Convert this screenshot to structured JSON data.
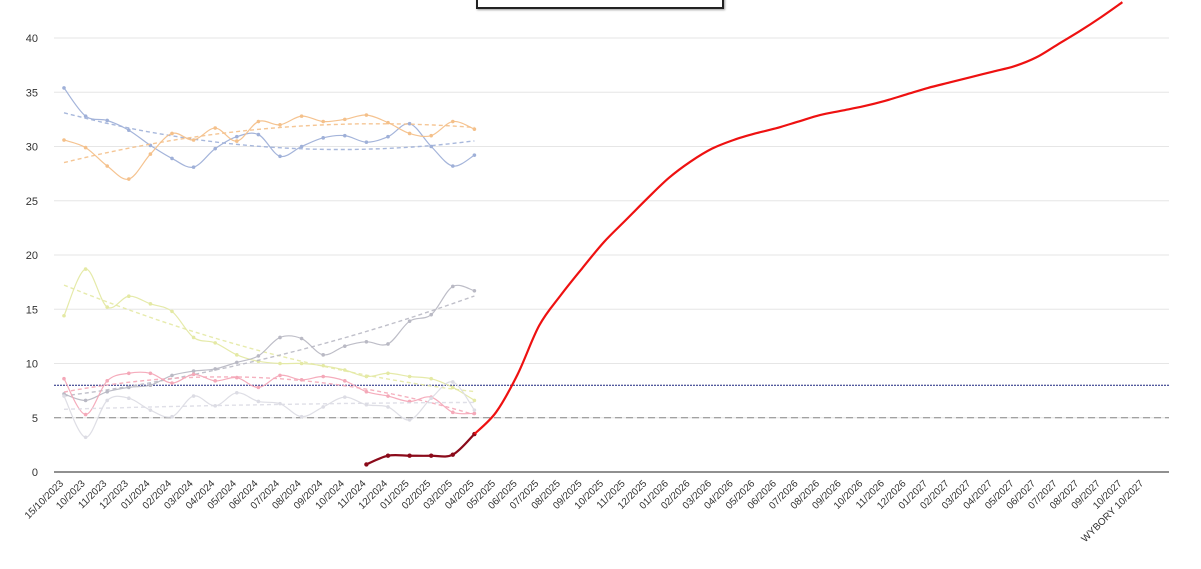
{
  "chart_data": {
    "type": "line",
    "y_ticks": [
      0,
      5,
      10,
      15,
      20,
      25,
      30,
      35,
      40
    ],
    "ylim": [
      0,
      43
    ],
    "x_labels": [
      "15/10/2023",
      "10/2023",
      "11/2023",
      "12/2023",
      "01/2024",
      "02/2024",
      "03/2024",
      "04/2024",
      "05/2024",
      "06/2024",
      "07/2024",
      "08/2024",
      "09/2024",
      "10/2024",
      "11/2024",
      "12/2024",
      "01/2025",
      "02/2025",
      "03/2025",
      "04/2025",
      "05/2025",
      "06/2025",
      "07/2025",
      "08/2025",
      "09/2025",
      "10/2025",
      "11/2025",
      "12/2025",
      "01/2026",
      "02/2026",
      "03/2026",
      "04/2026",
      "05/2026",
      "06/2026",
      "07/2026",
      "08/2026",
      "09/2026",
      "10/2026",
      "11/2026",
      "12/2026",
      "01/2027",
      "02/2027",
      "03/2027",
      "04/2027",
      "05/2027",
      "06/2027",
      "07/2027",
      "08/2027",
      "09/2027",
      "10/2027",
      "WYBORY 10/2027"
    ],
    "reference_lines": [
      {
        "value": 8,
        "color": "#1a237e",
        "style": "dotted"
      },
      {
        "value": 5,
        "color": "#888888",
        "style": "dashed"
      }
    ],
    "series": [
      {
        "color": "#9fb0d8",
        "x": [
          0,
          1,
          2,
          3,
          4,
          5,
          6,
          7,
          8,
          9,
          10,
          11,
          12,
          13,
          14,
          15,
          16,
          17,
          18,
          19
        ],
        "values": [
          35.4,
          32.8,
          32.4,
          31.5,
          30.1,
          28.9,
          28.1,
          29.8,
          30.9,
          31.1,
          29.1,
          30.0,
          30.8,
          31.0,
          30.4,
          30.9,
          32.1,
          30.0,
          28.2,
          29.2
        ]
      },
      {
        "color": "#f4c08a",
        "x": [
          0,
          1,
          2,
          3,
          4,
          5,
          6,
          7,
          8,
          9,
          10,
          11,
          12,
          13,
          14,
          15,
          16,
          17,
          18,
          19
        ],
        "values": [
          30.6,
          29.9,
          28.2,
          27.0,
          29.3,
          31.2,
          30.6,
          31.7,
          30.5,
          32.3,
          32.0,
          32.8,
          32.3,
          32.5,
          32.9,
          32.2,
          31.2,
          31.0,
          32.3,
          31.6
        ]
      },
      {
        "color": "#e4e9a4",
        "x": [
          0,
          1,
          2,
          3,
          4,
          5,
          6,
          7,
          8,
          9,
          10,
          11,
          12,
          13,
          14,
          15,
          16,
          17,
          18,
          19
        ],
        "values": [
          14.4,
          18.7,
          15.2,
          16.2,
          15.5,
          14.8,
          12.4,
          11.9,
          10.8,
          10.2,
          10.0,
          10.0,
          9.8,
          9.4,
          8.8,
          9.1,
          8.8,
          8.6,
          7.8,
          6.6
        ]
      },
      {
        "color": "#b9b9c4",
        "x": [
          0,
          1,
          2,
          3,
          4,
          5,
          6,
          7,
          8,
          9,
          10,
          11,
          12,
          13,
          14,
          15,
          16,
          17,
          18,
          19
        ],
        "values": [
          7.2,
          6.6,
          7.4,
          7.8,
          8.0,
          8.9,
          9.3,
          9.5,
          10.1,
          10.7,
          12.4,
          12.3,
          10.8,
          11.6,
          12.0,
          11.8,
          13.9,
          14.5,
          17.1,
          16.7
        ]
      },
      {
        "color": "#f4a8b8",
        "x": [
          0,
          1,
          2,
          3,
          4,
          5,
          6,
          7,
          8,
          9,
          10,
          11,
          12,
          13,
          14,
          15,
          16,
          17,
          18,
          19
        ],
        "values": [
          8.6,
          5.3,
          8.4,
          9.1,
          9.1,
          8.2,
          9.0,
          8.4,
          8.7,
          7.8,
          8.9,
          8.5,
          8.8,
          8.4,
          7.4,
          7.0,
          6.5,
          6.9,
          5.5,
          5.4
        ]
      },
      {
        "color": "#dcdce4",
        "x": [
          0,
          1,
          2,
          3,
          4,
          5,
          6,
          7,
          8,
          9,
          10,
          11,
          12,
          13,
          14,
          15,
          16,
          17,
          18,
          19
        ],
        "values": [
          7.0,
          3.2,
          6.6,
          6.8,
          5.7,
          5.1,
          7.0,
          6.1,
          7.3,
          6.5,
          6.3,
          5.1,
          6.0,
          6.9,
          6.2,
          6.0,
          4.8,
          6.8,
          8.3,
          5.7
        ]
      },
      {
        "color": "#8b0a1a",
        "x": [
          14,
          15,
          16,
          17,
          18,
          19
        ],
        "values": [
          0.7,
          1.5,
          1.5,
          1.5,
          1.6,
          3.5
        ]
      },
      {
        "color": "#ee1111",
        "x": [
          19,
          20,
          21,
          22,
          23,
          24,
          25,
          26,
          27,
          28,
          29,
          30,
          31,
          32,
          33,
          34,
          35,
          36,
          37,
          38,
          39,
          40,
          41,
          42,
          43,
          44,
          45,
          46,
          47,
          48,
          49
        ],
        "values": [
          3.5,
          5.5,
          9.0,
          13.5,
          16.3,
          18.8,
          21.2,
          23.2,
          25.2,
          27.1,
          28.6,
          29.8,
          30.6,
          31.2,
          31.7,
          32.3,
          32.9,
          33.3,
          33.7,
          34.2,
          34.8,
          35.4,
          35.9,
          36.4,
          36.9,
          37.4,
          38.2,
          39.4,
          40.6,
          41.9,
          43.3
        ]
      }
    ]
  }
}
